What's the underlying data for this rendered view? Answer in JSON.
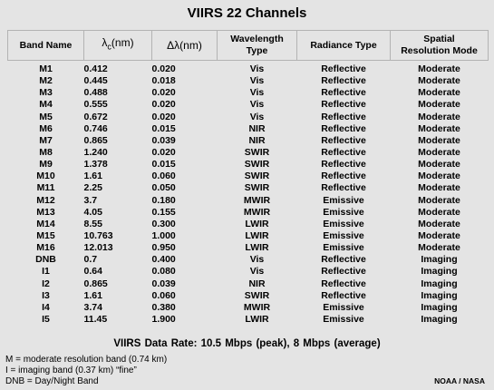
{
  "title": "VIIRS 22 Channels",
  "headers": {
    "band_name": "Band Name",
    "lambda_sym": "λ",
    "lambda_sub": "c",
    "lambda_unit": "(nm)",
    "dlambda": "Δλ(nm)",
    "wavelength_line1": "Wavelength",
    "wavelength_line2": "Type",
    "radiance_type": "Radiance Type",
    "spatial_line1": "Spatial",
    "spatial_line2": "Resolution Mode"
  },
  "rows": [
    {
      "band": "M1",
      "lambda_c": "0.412",
      "delta_lambda": "0.020",
      "wavelength_type": "Vis",
      "radiance_type": "Reflective",
      "resolution_mode": "Moderate"
    },
    {
      "band": "M2",
      "lambda_c": "0.445",
      "delta_lambda": "0.018",
      "wavelength_type": "Vis",
      "radiance_type": "Reflective",
      "resolution_mode": "Moderate"
    },
    {
      "band": "M3",
      "lambda_c": "0.488",
      "delta_lambda": "0.020",
      "wavelength_type": "Vis",
      "radiance_type": "Reflective",
      "resolution_mode": "Moderate"
    },
    {
      "band": "M4",
      "lambda_c": "0.555",
      "delta_lambda": "0.020",
      "wavelength_type": "Vis",
      "radiance_type": "Reflective",
      "resolution_mode": "Moderate"
    },
    {
      "band": "M5",
      "lambda_c": "0.672",
      "delta_lambda": "0.020",
      "wavelength_type": "Vis",
      "radiance_type": "Reflective",
      "resolution_mode": "Moderate"
    },
    {
      "band": "M6",
      "lambda_c": "0.746",
      "delta_lambda": "0.015",
      "wavelength_type": "NIR",
      "radiance_type": "Reflective",
      "resolution_mode": "Moderate"
    },
    {
      "band": "M7",
      "lambda_c": "0.865",
      "delta_lambda": "0.039",
      "wavelength_type": "NIR",
      "radiance_type": "Reflective",
      "resolution_mode": "Moderate"
    },
    {
      "band": "M8",
      "lambda_c": "1.240",
      "delta_lambda": "0.020",
      "wavelength_type": "SWIR",
      "radiance_type": "Reflective",
      "resolution_mode": "Moderate"
    },
    {
      "band": "M9",
      "lambda_c": "1.378",
      "delta_lambda": "0.015",
      "wavelength_type": "SWIR",
      "radiance_type": "Reflective",
      "resolution_mode": "Moderate"
    },
    {
      "band": "M10",
      "lambda_c": "1.61",
      "delta_lambda": "0.060",
      "wavelength_type": "SWIR",
      "radiance_type": "Reflective",
      "resolution_mode": "Moderate"
    },
    {
      "band": "M11",
      "lambda_c": "2.25",
      "delta_lambda": "0.050",
      "wavelength_type": "SWIR",
      "radiance_type": "Reflective",
      "resolution_mode": "Moderate"
    },
    {
      "band": "M12",
      "lambda_c": "3.7",
      "delta_lambda": "0.180",
      "wavelength_type": "MWIR",
      "radiance_type": "Emissive",
      "resolution_mode": "Moderate"
    },
    {
      "band": "M13",
      "lambda_c": "4.05",
      "delta_lambda": "0.155",
      "wavelength_type": "MWIR",
      "radiance_type": "Emissive",
      "resolution_mode": "Moderate"
    },
    {
      "band": "M14",
      "lambda_c": "8.55",
      "delta_lambda": "0.300",
      "wavelength_type": "LWIR",
      "radiance_type": "Emissive",
      "resolution_mode": "Moderate"
    },
    {
      "band": "M15",
      "lambda_c": "10.763",
      "delta_lambda": "1.000",
      "wavelength_type": "LWIR",
      "radiance_type": "Emissive",
      "resolution_mode": "Moderate"
    },
    {
      "band": "M16",
      "lambda_c": "12.013",
      "delta_lambda": "0.950",
      "wavelength_type": "LWIR",
      "radiance_type": "Emissive",
      "resolution_mode": "Moderate"
    },
    {
      "band": "DNB",
      "lambda_c": "0.7",
      "delta_lambda": "0.400",
      "wavelength_type": "Vis",
      "radiance_type": "Reflective",
      "resolution_mode": "Imaging"
    },
    {
      "band": "I1",
      "lambda_c": "0.64",
      "delta_lambda": "0.080",
      "wavelength_type": "Vis",
      "radiance_type": "Reflective",
      "resolution_mode": "Imaging"
    },
    {
      "band": "I2",
      "lambda_c": "0.865",
      "delta_lambda": "0.039",
      "wavelength_type": "NIR",
      "radiance_type": "Reflective",
      "resolution_mode": "Imaging"
    },
    {
      "band": "I3",
      "lambda_c": "1.61",
      "delta_lambda": "0.060",
      "wavelength_type": "SWIR",
      "radiance_type": "Reflective",
      "resolution_mode": "Imaging"
    },
    {
      "band": "I4",
      "lambda_c": "3.74",
      "delta_lambda": "0.380",
      "wavelength_type": "MWIR",
      "radiance_type": "Emissive",
      "resolution_mode": "Imaging"
    },
    {
      "band": "I5",
      "lambda_c": "11.45",
      "delta_lambda": "1.900",
      "wavelength_type": "LWIR",
      "radiance_type": "Emissive",
      "resolution_mode": "Imaging"
    }
  ],
  "data_rate": "VIIRS Data Rate:  10.5 Mbps (peak), 8 Mbps (average)",
  "notes": [
    "M = moderate resolution band (0.74 km)",
    "I = imaging band (0.37 km) “fine”",
    "DNB = Day/Night Band"
  ],
  "credit": "NOAA / NASA"
}
